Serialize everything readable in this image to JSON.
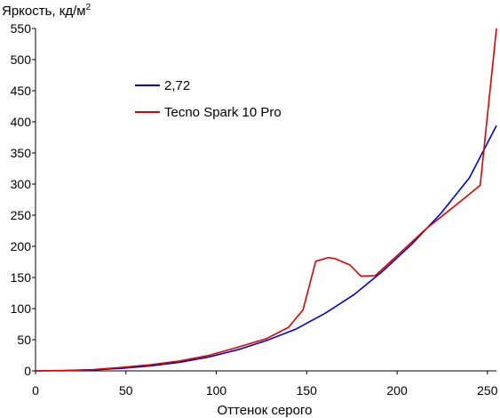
{
  "chart_data": {
    "type": "line",
    "title": "",
    "ylabel": "Яркость, кд/м",
    "ylabel_sup": "2",
    "xlabel": "Оттенок серого",
    "xlim": [
      0,
      255
    ],
    "ylim": [
      0,
      550
    ],
    "x_ticks": [
      0,
      50,
      100,
      150,
      200,
      250
    ],
    "y_ticks": [
      0,
      50,
      100,
      150,
      200,
      250,
      300,
      350,
      400,
      450,
      500,
      550
    ],
    "grid": false,
    "legend_position": "top-left",
    "series": [
      {
        "name": "2,72",
        "color": "#0000cc",
        "x": [
          0,
          16,
          32,
          48,
          64,
          80,
          96,
          112,
          128,
          144,
          160,
          176,
          192,
          208,
          224,
          240,
          255
        ],
        "y": [
          0,
          0.3,
          1.6,
          4.1,
          8.1,
          13.8,
          22.4,
          34,
          49,
          67,
          92,
          122,
          160,
          203,
          252,
          310,
          394
        ]
      },
      {
        "name": "Tecno Spark 10 Pro",
        "color": "#dd0000",
        "x": [
          0,
          16,
          32,
          48,
          64,
          80,
          96,
          112,
          128,
          140,
          148,
          155,
          162,
          166,
          174,
          180,
          188,
          200,
          216,
          232,
          246,
          255
        ],
        "y": [
          0,
          0.5,
          2,
          5.5,
          10,
          16,
          25,
          38,
          52,
          70,
          98,
          176,
          182,
          180,
          170,
          152,
          153,
          185,
          228,
          265,
          298,
          550
        ]
      }
    ]
  }
}
